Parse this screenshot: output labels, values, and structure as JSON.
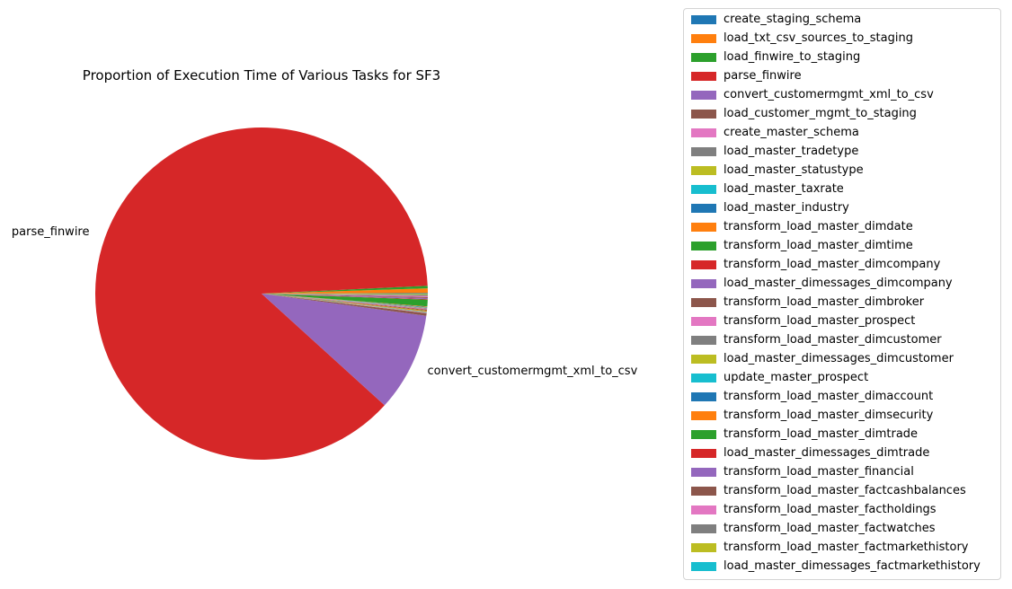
{
  "chart_data": {
    "type": "pie",
    "title": "Proportion of Execution Time of Various Tasks for SF3",
    "legend_position": "outside-right",
    "slices": [
      {
        "label": "create_staging_schema",
        "value": 0.05,
        "color": "#1f77b4"
      },
      {
        "label": "load_txt_csv_sources_to_staging",
        "value": 0.45,
        "color": "#ff7f0e"
      },
      {
        "label": "load_finwire_to_staging",
        "value": 0.25,
        "color": "#2ca02c"
      },
      {
        "label": "parse_finwire",
        "value": 87.45,
        "color": "#d62728",
        "display_label": "parse_finwire"
      },
      {
        "label": "convert_customermgmt_xml_to_csv",
        "value": 9.6,
        "color": "#9467bd",
        "display_label": "convert_customermgmt_xml_to_csv"
      },
      {
        "label": "load_customer_mgmt_to_staging",
        "value": 0.25,
        "color": "#8c564b"
      },
      {
        "label": "create_master_schema",
        "value": 0.03,
        "color": "#e377c2"
      },
      {
        "label": "load_master_tradetype",
        "value": 0.03,
        "color": "#7f7f7f"
      },
      {
        "label": "load_master_statustype",
        "value": 0.03,
        "color": "#bcbd22"
      },
      {
        "label": "load_master_taxrate",
        "value": 0.03,
        "color": "#17becf"
      },
      {
        "label": "load_master_industry",
        "value": 0.03,
        "color": "#1f77b4"
      },
      {
        "label": "transform_load_master_dimdate",
        "value": 0.08,
        "color": "#ff7f0e"
      },
      {
        "label": "transform_load_master_dimtime",
        "value": 0.05,
        "color": "#2ca02c"
      },
      {
        "label": "transform_load_master_dimcompany",
        "value": 0.05,
        "color": "#d62728"
      },
      {
        "label": "load_master_dimessages_dimcompany",
        "value": 0.03,
        "color": "#9467bd"
      },
      {
        "label": "transform_load_master_dimbroker",
        "value": 0.03,
        "color": "#8c564b"
      },
      {
        "label": "transform_load_master_prospect",
        "value": 0.05,
        "color": "#e377c2"
      },
      {
        "label": "transform_load_master_dimcustomer",
        "value": 0.05,
        "color": "#7f7f7f"
      },
      {
        "label": "load_master_dimessages_dimcustomer",
        "value": 0.03,
        "color": "#bcbd22"
      },
      {
        "label": "update_master_prospect",
        "value": 0.03,
        "color": "#17becf"
      },
      {
        "label": "transform_load_master_dimaccount",
        "value": 0.05,
        "color": "#1f77b4"
      },
      {
        "label": "transform_load_master_dimsecurity",
        "value": 0.05,
        "color": "#ff7f0e"
      },
      {
        "label": "transform_load_master_dimtrade",
        "value": 0.65,
        "color": "#2ca02c"
      },
      {
        "label": "load_master_dimessages_dimtrade",
        "value": 0.05,
        "color": "#d62728"
      },
      {
        "label": "transform_load_master_financial",
        "value": 0.1,
        "color": "#9467bd"
      },
      {
        "label": "transform_load_master_factcashbalances",
        "value": 0.1,
        "color": "#8c564b"
      },
      {
        "label": "transform_load_master_factholdings",
        "value": 0.1,
        "color": "#e377c2"
      },
      {
        "label": "transform_load_master_factwatches",
        "value": 0.1,
        "color": "#7f7f7f"
      },
      {
        "label": "transform_load_master_factmarkethistory",
        "value": 0.1,
        "color": "#bcbd22"
      },
      {
        "label": "load_master_dimessages_factmarkethistory",
        "value": 0.03,
        "color": "#17becf"
      }
    ]
  }
}
